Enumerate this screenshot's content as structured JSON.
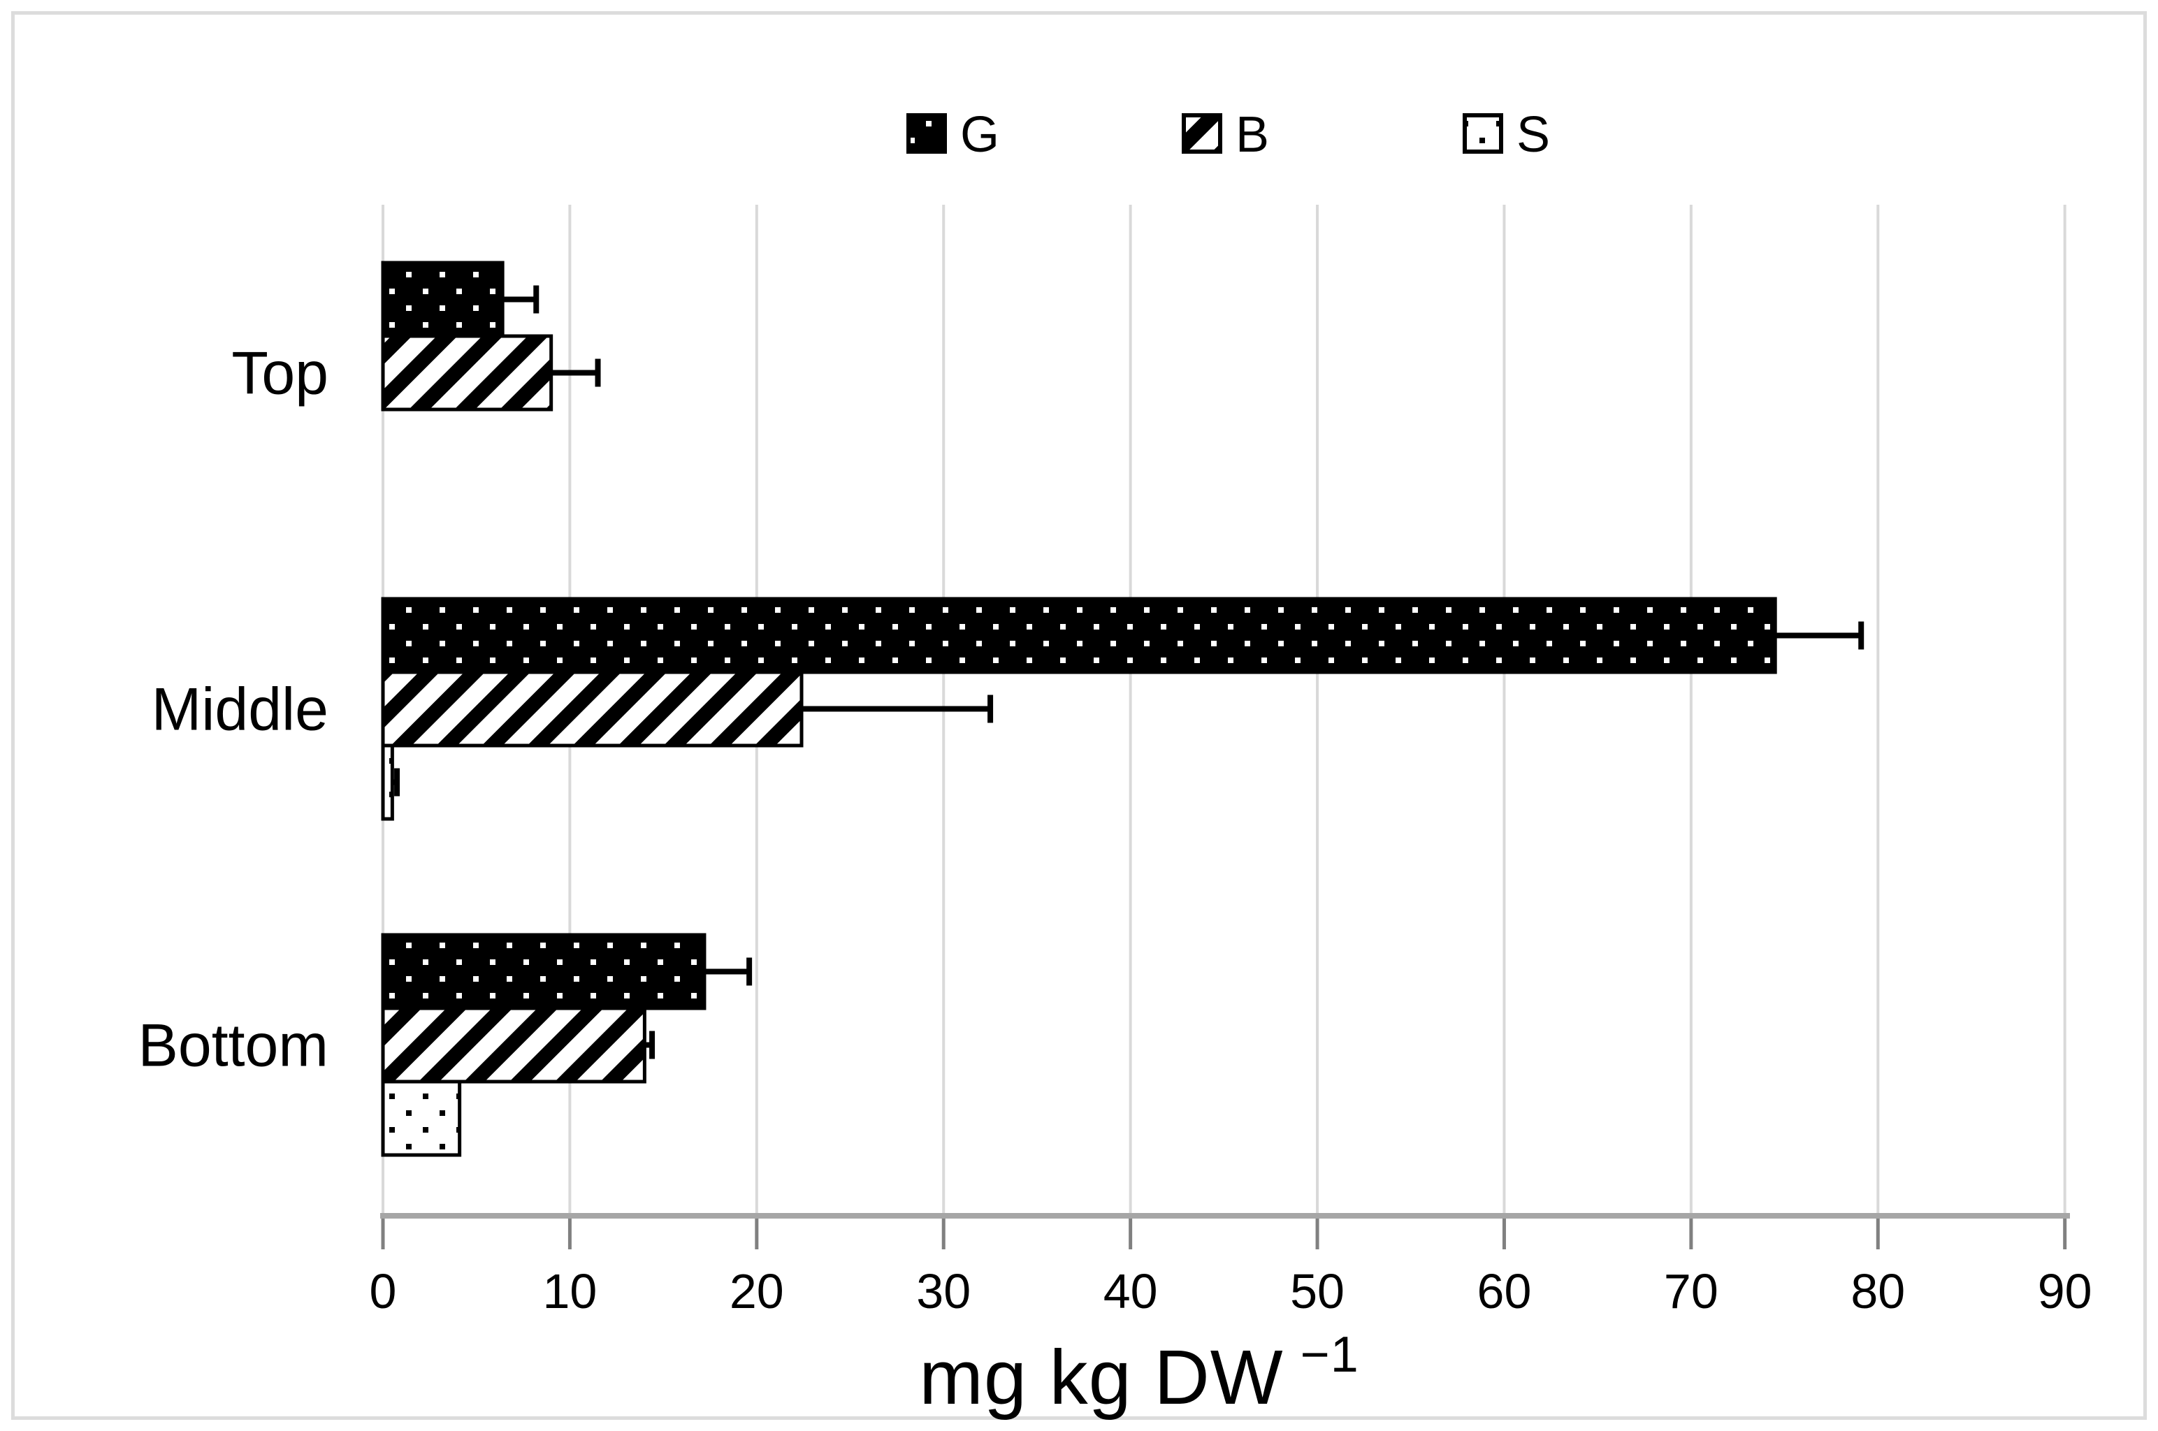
{
  "figure": {
    "background": "#ffffff",
    "frame_border_color": "#dcdcdc"
  },
  "chart_data": {
    "type": "bar",
    "orientation": "horizontal",
    "title": "",
    "categories": [
      "Top",
      "Middle",
      "Bottom"
    ],
    "series": [
      {
        "name": "G",
        "pattern": "white-dots-on-black",
        "values": [
          6.4,
          74.5,
          17.2
        ],
        "errors_plus": [
          1.8,
          4.6,
          2.4
        ]
      },
      {
        "name": "B",
        "pattern": "black-diagonal-stripes-on-white",
        "values": [
          9.0,
          22.4,
          14.0
        ],
        "errors_plus": [
          2.5,
          10.1,
          0.4
        ]
      },
      {
        "name": "S",
        "pattern": "black-dots-on-white",
        "values": [
          0,
          0.5,
          4.1
        ],
        "errors_plus": [
          0,
          0.25,
          0
        ]
      }
    ],
    "xlabel": "mg kg DW",
    "xlabel_superscript": "−1",
    "ylabel": "",
    "x_ticks": [
      0,
      10,
      20,
      30,
      40,
      50,
      60,
      70,
      80,
      90
    ],
    "xlim": [
      0,
      90
    ],
    "grid": "vertical",
    "legend_position": "top-center",
    "colors": {
      "gridline": "#d9d9d9",
      "axis_line": "#a6a6a6",
      "tick_mark": "#808080",
      "text": "#000000",
      "bar_dark": "#000000",
      "bar_light": "#ffffff"
    }
  }
}
